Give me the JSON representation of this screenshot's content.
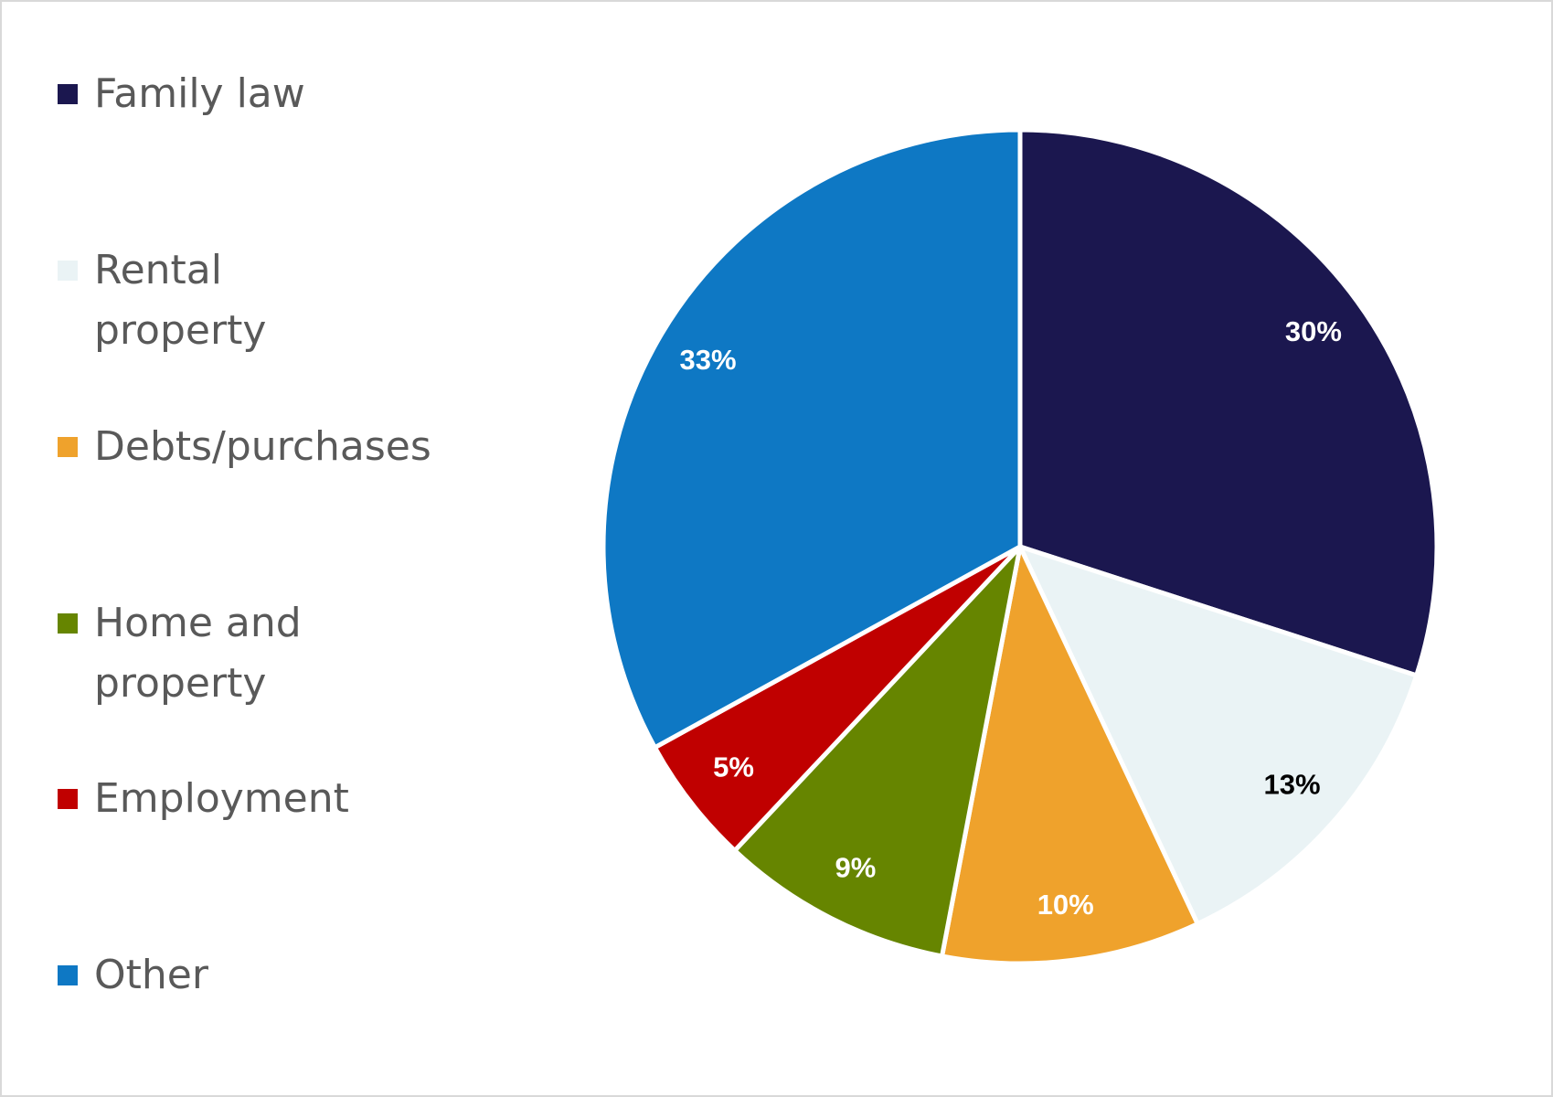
{
  "chart_data": {
    "type": "pie",
    "categories": [
      "Family law",
      "Rental property",
      "Debts/purchases",
      "Home and property",
      "Employment",
      "Other"
    ],
    "values": [
      30,
      13,
      10,
      9,
      5,
      33
    ],
    "value_labels": [
      "30%",
      "13%",
      "10%",
      "9%",
      "5%",
      "33%"
    ],
    "colors": [
      "#1b174f",
      "#eaf3f5",
      "#efa22c",
      "#668500",
      "#c00000",
      "#0e78c4"
    ],
    "legend": "left"
  }
}
